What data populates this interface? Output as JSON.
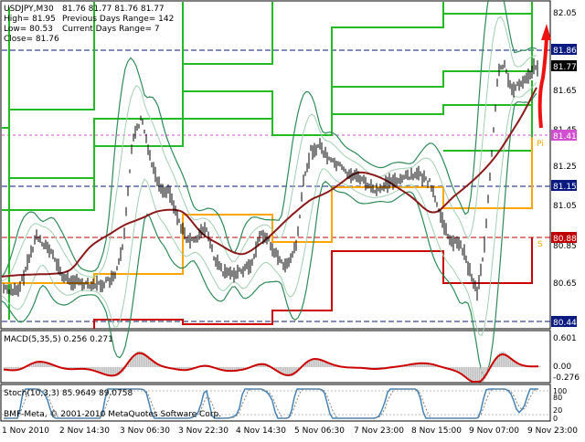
{
  "window": {
    "symbol_tf": "USDJPY,M30",
    "ohlc": "81.76 81.77 81.76 81.77"
  },
  "info": {
    "high": "High= 81.95",
    "low": "Low= 80.53",
    "close": "Close= 81.76",
    "prev_range": "Previous Days Range= 142",
    "curr_range": "Current Days Range= 7"
  },
  "price_axis": {
    "ticks": [
      "82.05",
      "81.65",
      "81.45",
      "81.25",
      "81.05",
      "80.85",
      "80.65"
    ],
    "tags": [
      {
        "value": "81.86",
        "color": "#0a1a80"
      },
      {
        "value": "81.77",
        "color": "#000000"
      },
      {
        "value": "81.41",
        "color": "#d050d0"
      },
      {
        "value": "81.15",
        "color": "#0a1a80"
      },
      {
        "value": "80.88",
        "color": "#c00000"
      },
      {
        "value": "80.44",
        "color": "#0a1a80"
      }
    ],
    "pivot_label": "Pi",
    "s_label": "S"
  },
  "macd": {
    "label": "MACD(5,35,5) 0.256 0.271",
    "ticks": [
      "0.601",
      "0.00",
      "-0.276"
    ]
  },
  "stoch": {
    "label": "Stoch(10,3,3) 85.9649 89.0758",
    "ticks": [
      "100",
      "80",
      "20",
      "0"
    ],
    "copyright": "BMF-Meta, © 2001-2010 MetaQuotes Software Corp."
  },
  "time_axis": {
    "labels": [
      "1 Nov 2010",
      "2 Nov 14:30",
      "3 Nov 06:30",
      "3 Nov 22:30",
      "4 Nov 14:30",
      "5 Nov 06:30",
      "7 Nov 23:00",
      "8 Nov 15:00",
      "9 Nov 07:00",
      "9 Nov 23:00"
    ]
  },
  "colors": {
    "price": "#000000",
    "band_outer": "#2e8b57",
    "band_inner": "#a0d0b0",
    "range_green": "#22bb22",
    "range_orange": "#ffa500",
    "range_red": "#cc0000",
    "ma": "#8b1a1a",
    "macd_hist": "#c0c0c0",
    "macd_signal": "#cc0000",
    "stoch_main": "#4682b4",
    "stoch_signal": "#808080"
  }
}
